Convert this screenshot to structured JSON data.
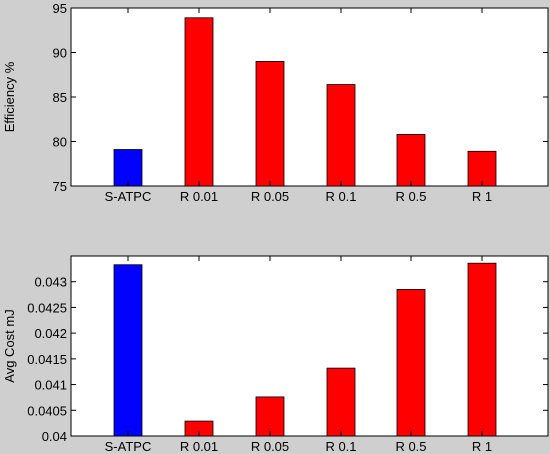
{
  "chart_data": [
    {
      "type": "bar",
      "categories": [
        "S-ATPC",
        "R 0.01",
        "R 0.05",
        "R 0.1",
        "R 0.5",
        "R 1"
      ],
      "values": [
        79.1,
        93.9,
        89.0,
        86.4,
        80.8,
        78.9
      ],
      "colors": [
        "#0000ff",
        "#ff0000",
        "#ff0000",
        "#ff0000",
        "#ff0000",
        "#ff0000"
      ],
      "ylabel": "Efficiency %",
      "ylim": [
        75,
        95
      ],
      "yticks": [
        75,
        80,
        85,
        90,
        95
      ],
      "ytick_labels": [
        "75",
        "80",
        "85",
        "90",
        "95"
      ],
      "grid": false
    },
    {
      "type": "bar",
      "categories": [
        "S-ATPC",
        "R 0.01",
        "R 0.05",
        "R 0.1",
        "R 0.5",
        "R 1"
      ],
      "values": [
        0.04333,
        0.04029,
        0.04076,
        0.04132,
        0.04285,
        0.04336
      ],
      "colors": [
        "#0000ff",
        "#ff0000",
        "#ff0000",
        "#ff0000",
        "#ff0000",
        "#ff0000"
      ],
      "ylabel": "Avg Cost mJ",
      "ylim": [
        0.04,
        0.0435
      ],
      "yticks": [
        0.04,
        0.0405,
        0.041,
        0.0415,
        0.042,
        0.0425,
        0.043
      ],
      "ytick_labels": [
        "0.04",
        "0.0405",
        "0.041",
        "0.0415",
        "0.042",
        "0.0425",
        "0.043"
      ],
      "grid": false
    }
  ]
}
